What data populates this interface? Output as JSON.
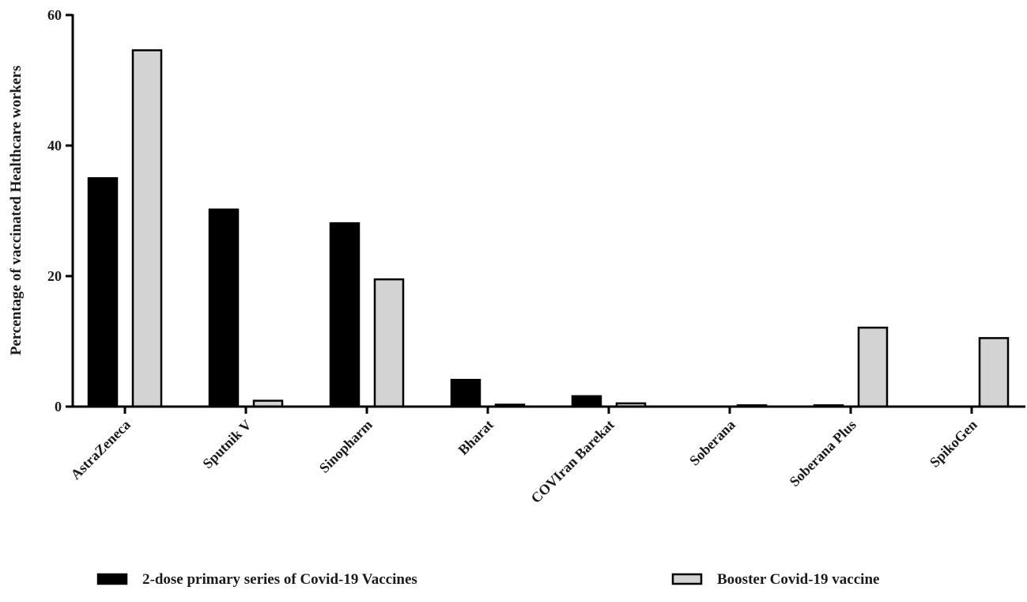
{
  "chart_data": {
    "type": "bar",
    "title": "",
    "xlabel": "",
    "ylabel": "Percentage of vaccinated Healthcare workers",
    "ylim": [
      0,
      60
    ],
    "yticks": [
      "0",
      "20",
      "40",
      "60"
    ],
    "grid": false,
    "legend_position": "bottom",
    "categories": [
      "AstraZeneca",
      "Sputnik V",
      "Sinopharm",
      "Bharat",
      "COVIran Barekat",
      "Soberana",
      "Soberana Plus",
      "SpikoGen"
    ],
    "series": [
      {
        "name": "2-dose primary series of Covid-19 Vaccines",
        "color": "#000000",
        "values": [
          35.0,
          30.2,
          28.1,
          4.1,
          1.6,
          0.0,
          0.2,
          0.0
        ]
      },
      {
        "name": "Booster Covid-19 vaccine",
        "color": "#d3d3d3",
        "values": [
          54.6,
          0.9,
          19.5,
          0.3,
          0.5,
          0.2,
          12.1,
          10.5
        ]
      }
    ]
  }
}
